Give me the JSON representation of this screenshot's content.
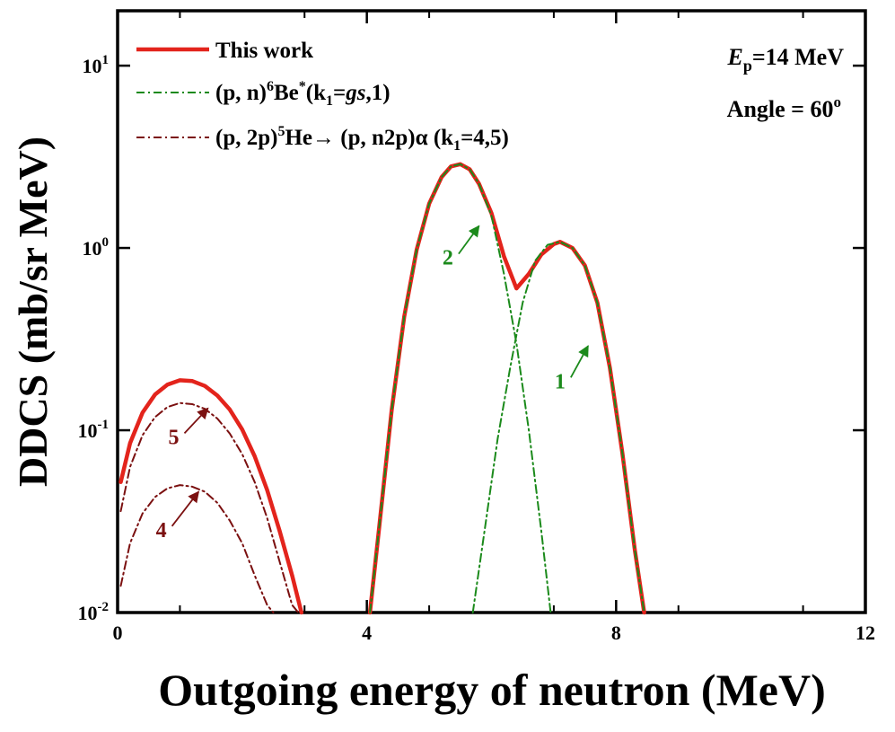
{
  "chart_data": {
    "type": "line",
    "xlabel": "Outgoing energy of neutron (MeV)",
    "ylabel": "DDCS (mb/sr MeV)",
    "xlim": [
      0,
      12
    ],
    "ylim": [
      0.01,
      20
    ],
    "yscale": "log",
    "grid": false,
    "legend_position": "top-left",
    "x_ticks": [
      {
        "value": 0,
        "label": "0"
      },
      {
        "value": 4,
        "label": "4"
      },
      {
        "value": 8,
        "label": "8"
      },
      {
        "value": 12,
        "label": "12"
      }
    ],
    "y_ticks": [
      {
        "value": 0.01,
        "base": "10",
        "exp": "-2"
      },
      {
        "value": 0.1,
        "base": "10",
        "exp": "-1"
      },
      {
        "value": 1,
        "base": "10",
        "exp": "0"
      },
      {
        "value": 10,
        "base": "10",
        "exp": "1"
      }
    ],
    "annotation": {
      "energy_symbol": "E",
      "energy_sub": "p",
      "energy_value": "=14 MeV",
      "angle_text": "Angle = 60",
      "angle_sup": "o"
    },
    "series": [
      {
        "legend": {
          "pre": "This work"
        },
        "style": "solid",
        "color": "#e3241c",
        "points": [
          [
            0.05,
            0.052
          ],
          [
            0.2,
            0.085
          ],
          [
            0.4,
            0.125
          ],
          [
            0.6,
            0.157
          ],
          [
            0.8,
            0.178
          ],
          [
            1.0,
            0.188
          ],
          [
            1.2,
            0.186
          ],
          [
            1.4,
            0.175
          ],
          [
            1.6,
            0.155
          ],
          [
            1.8,
            0.13
          ],
          [
            2.0,
            0.101
          ],
          [
            2.2,
            0.072
          ],
          [
            2.4,
            0.047
          ],
          [
            2.6,
            0.028
          ],
          [
            2.8,
            0.016
          ],
          [
            2.95,
            0.01
          ],
          null,
          [
            4.05,
            0.01
          ],
          [
            4.2,
            0.03
          ],
          [
            4.4,
            0.13
          ],
          [
            4.6,
            0.42
          ],
          [
            4.8,
            0.98
          ],
          [
            5.0,
            1.75
          ],
          [
            5.2,
            2.45
          ],
          [
            5.35,
            2.8
          ],
          [
            5.5,
            2.88
          ],
          [
            5.65,
            2.7
          ],
          [
            5.8,
            2.25
          ],
          [
            6.0,
            1.55
          ],
          [
            6.2,
            0.9
          ],
          [
            6.4,
            0.6
          ],
          [
            6.6,
            0.72
          ],
          [
            6.8,
            0.92
          ],
          [
            7.0,
            1.05
          ],
          [
            7.1,
            1.08
          ],
          [
            7.3,
            1.0
          ],
          [
            7.5,
            0.8
          ],
          [
            7.7,
            0.5
          ],
          [
            7.9,
            0.22
          ],
          [
            8.1,
            0.075
          ],
          [
            8.3,
            0.022
          ],
          [
            8.45,
            0.01
          ]
        ]
      },
      {
        "legend": {
          "pre": "(p, n)",
          "sup1": "6",
          "mid1": "Be",
          "sup2": "*",
          "mid2": "(k",
          "sub1": "1",
          "mid3": "=",
          "ital": "gs",
          "post": ",1)"
        },
        "style": "dashdot",
        "color": "#1b8a1b",
        "points": [
          [
            4.05,
            0.01
          ],
          [
            4.2,
            0.03
          ],
          [
            4.4,
            0.13
          ],
          [
            4.6,
            0.42
          ],
          [
            4.8,
            0.98
          ],
          [
            5.0,
            1.75
          ],
          [
            5.2,
            2.45
          ],
          [
            5.35,
            2.8
          ],
          [
            5.5,
            2.88
          ],
          [
            5.65,
            2.7
          ],
          [
            5.8,
            2.25
          ],
          [
            6.0,
            1.5
          ],
          [
            6.2,
            0.72
          ],
          [
            6.4,
            0.3
          ],
          [
            6.6,
            0.1
          ],
          [
            6.8,
            0.028
          ],
          [
            6.95,
            0.01
          ],
          null,
          [
            5.7,
            0.01
          ],
          [
            5.9,
            0.03
          ],
          [
            6.1,
            0.09
          ],
          [
            6.3,
            0.22
          ],
          [
            6.5,
            0.5
          ],
          [
            6.7,
            0.85
          ],
          [
            6.9,
            1.04
          ],
          [
            7.1,
            1.08
          ],
          [
            7.3,
            1.0
          ],
          [
            7.5,
            0.8
          ],
          [
            7.7,
            0.5
          ],
          [
            7.9,
            0.22
          ],
          [
            8.1,
            0.075
          ],
          [
            8.3,
            0.022
          ],
          [
            8.45,
            0.01
          ]
        ]
      },
      {
        "legend": {
          "pre": "(p, 2p)",
          "sup1": "5",
          "mid1": "He→ (p, n2p)α (k",
          "sub1": "1",
          "post": "=4,5)"
        },
        "style": "dashdot",
        "color": "#7b1010",
        "points": [
          [
            0.05,
            0.036
          ],
          [
            0.2,
            0.063
          ],
          [
            0.4,
            0.094
          ],
          [
            0.6,
            0.118
          ],
          [
            0.8,
            0.134
          ],
          [
            1.0,
            0.141
          ],
          [
            1.2,
            0.139
          ],
          [
            1.4,
            0.131
          ],
          [
            1.6,
            0.116
          ],
          [
            1.8,
            0.096
          ],
          [
            2.0,
            0.074
          ],
          [
            2.2,
            0.052
          ],
          [
            2.4,
            0.033
          ],
          [
            2.6,
            0.019
          ],
          [
            2.8,
            0.011
          ],
          [
            2.9,
            0.01
          ],
          null,
          [
            0.05,
            0.014
          ],
          [
            0.2,
            0.024
          ],
          [
            0.4,
            0.035
          ],
          [
            0.6,
            0.043
          ],
          [
            0.8,
            0.048
          ],
          [
            1.0,
            0.05
          ],
          [
            1.2,
            0.049
          ],
          [
            1.4,
            0.046
          ],
          [
            1.6,
            0.04
          ],
          [
            1.8,
            0.032
          ],
          [
            2.0,
            0.024
          ],
          [
            2.2,
            0.016
          ],
          [
            2.4,
            0.011
          ],
          [
            2.5,
            0.01
          ]
        ]
      }
    ],
    "curve_labels": [
      {
        "text": "1",
        "x": 7.1,
        "y": 0.17,
        "arrow_to": [
          7.55,
          0.29
        ],
        "color": "#1b8a1b"
      },
      {
        "text": "2",
        "x": 5.3,
        "y": 0.81,
        "arrow_to": [
          5.8,
          1.32
        ],
        "color": "#1b8a1b"
      },
      {
        "text": "5",
        "x": 0.9,
        "y": 0.084,
        "arrow_to": [
          1.45,
          0.132
        ],
        "color": "#7b1010"
      },
      {
        "text": "4",
        "x": 0.7,
        "y": 0.026,
        "arrow_to": [
          1.3,
          0.046
        ],
        "color": "#7b1010"
      }
    ]
  }
}
